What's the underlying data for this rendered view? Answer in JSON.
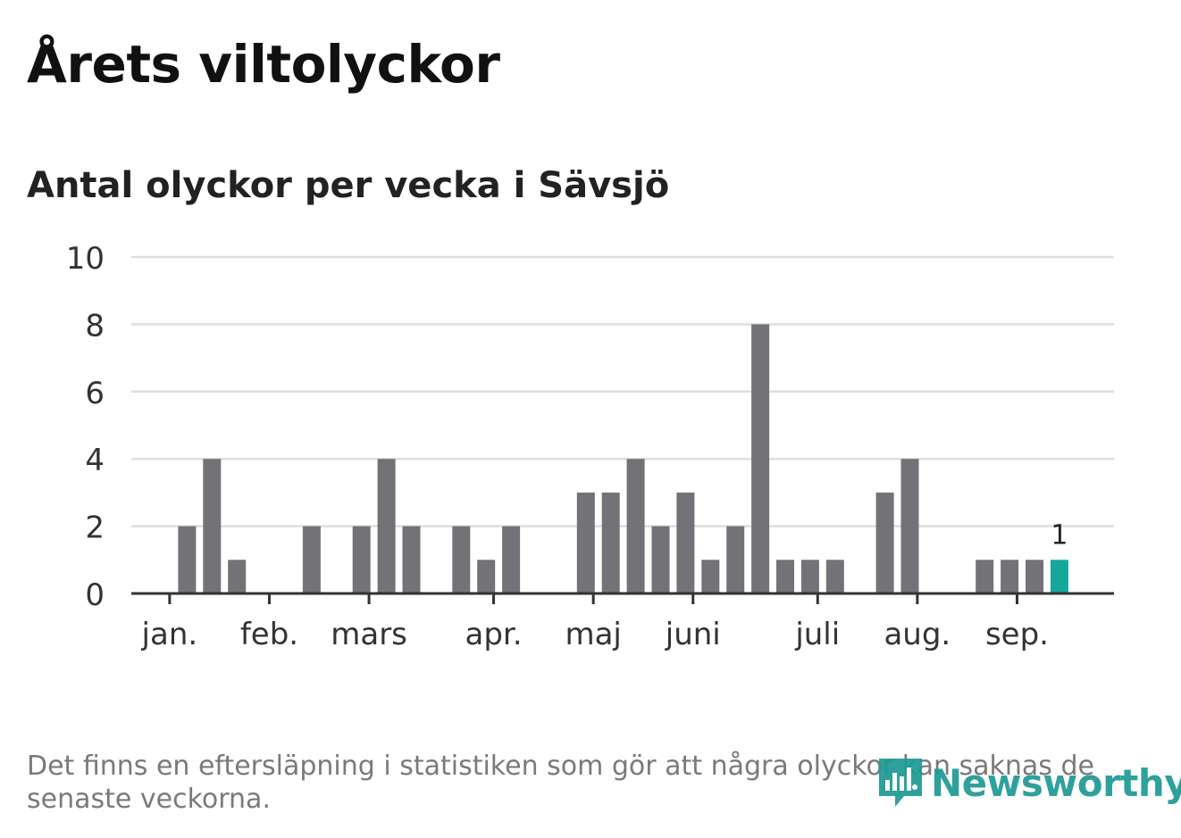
{
  "title": "Årets viltolyckor",
  "subtitle": "Antal olyckor per vecka i Sävsjö",
  "footnote": "Det finns en eftersläpning i statistiken som gör att några olyckor kan saknas de senaste veckorna.",
  "logo_text": "Newsworthy",
  "colors": {
    "bar": "#737277",
    "highlight": "#14a79c",
    "grid": "#dedede",
    "axis": "#333333",
    "logo": "#1e9a95"
  },
  "chart_data": {
    "type": "bar",
    "x": [
      1,
      2,
      3,
      4,
      5,
      6,
      7,
      8,
      9,
      10,
      11,
      12,
      13,
      14,
      15,
      16,
      17,
      18,
      19,
      20,
      21,
      22,
      23,
      24,
      25,
      26,
      27,
      28,
      29,
      30,
      31,
      32,
      33,
      34,
      35,
      36,
      37,
      38
    ],
    "values": [
      0,
      2,
      4,
      1,
      0,
      0,
      2,
      0,
      2,
      4,
      2,
      0,
      2,
      1,
      2,
      0,
      0,
      3,
      3,
      4,
      2,
      3,
      1,
      2,
      8,
      1,
      1,
      1,
      0,
      3,
      4,
      0,
      0,
      1,
      1,
      1,
      1,
      0
    ],
    "highlight_index": 36,
    "highlight_label": "1",
    "ylim": [
      0,
      10
    ],
    "yticks": [
      "0",
      "2",
      "4",
      "6",
      "8",
      "10"
    ],
    "month_ticks": [
      {
        "label": "jan.",
        "week": 1.3
      },
      {
        "label": "feb.",
        "week": 5.3
      },
      {
        "label": "mars",
        "week": 9.3
      },
      {
        "label": "apr.",
        "week": 14.3
      },
      {
        "label": "maj",
        "week": 18.3
      },
      {
        "label": "juni",
        "week": 22.3
      },
      {
        "label": "juli",
        "week": 27.3
      },
      {
        "label": "aug.",
        "week": 31.3
      },
      {
        "label": "sep.",
        "week": 35.3
      }
    ],
    "grid": true,
    "xlabel": "",
    "ylabel": ""
  }
}
